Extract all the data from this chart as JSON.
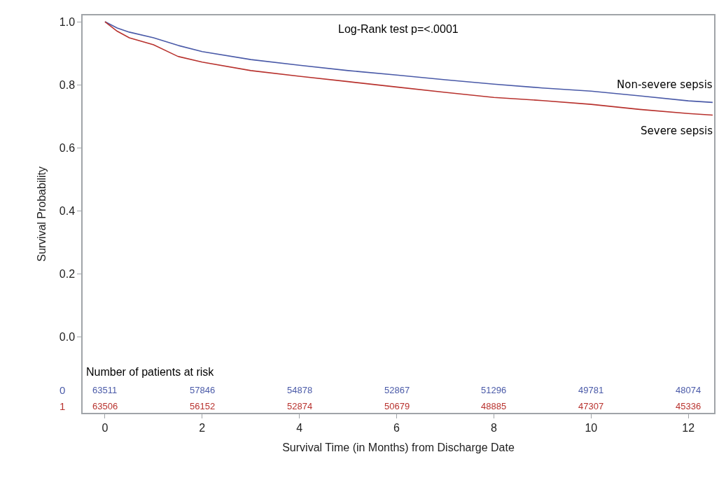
{
  "chart_data": {
    "type": "line",
    "xlabel": "Survival Time (in Months) from Discharge Date",
    "ylabel": "Survival Probability",
    "xlim": [
      -0.46,
      12.53
    ],
    "ylim": [
      -0.24,
      1.02
    ],
    "xticks": [
      0,
      2,
      4,
      6,
      8,
      10,
      12
    ],
    "yticks": [
      {
        "value": 0,
        "label": "0.0"
      },
      {
        "value": 0.2,
        "label": "0.2"
      },
      {
        "value": 0.4,
        "label": "0.4"
      },
      {
        "value": 0.6,
        "label": "0.6"
      },
      {
        "value": 0.8,
        "label": "0.8"
      },
      {
        "value": 1,
        "label": "1.0"
      }
    ],
    "x": [
      0,
      0.25,
      0.5,
      1,
      1.5,
      2,
      3,
      4,
      5,
      6,
      7,
      8,
      9,
      10,
      11,
      12,
      12.5
    ],
    "series": [
      {
        "name": "Non-severe sepsis",
        "color": "#4a5aa8",
        "values": [
          1.0,
          0.98,
          0.967,
          0.949,
          0.925,
          0.905,
          0.88,
          0.862,
          0.845,
          0.831,
          0.816,
          0.802,
          0.79,
          0.78,
          0.765,
          0.749,
          0.744
        ]
      },
      {
        "name": "Severe sepsis",
        "color": "#b8322e",
        "values": [
          1.0,
          0.97,
          0.949,
          0.927,
          0.89,
          0.872,
          0.845,
          0.827,
          0.81,
          0.793,
          0.776,
          0.76,
          0.75,
          0.738,
          0.722,
          0.709,
          0.704
        ]
      }
    ],
    "annotations": [
      "Log-Rank test p=<.0001",
      "Number of patients at risk",
      "0",
      "63511",
      "57846",
      "54878",
      "52867",
      "51296",
      "49781",
      "48074",
      "1",
      "63506",
      "56152",
      "52874",
      "50679",
      "48885",
      "47307",
      "45336"
    ],
    "legend": false,
    "marker": "none",
    "line_style": "solid"
  }
}
